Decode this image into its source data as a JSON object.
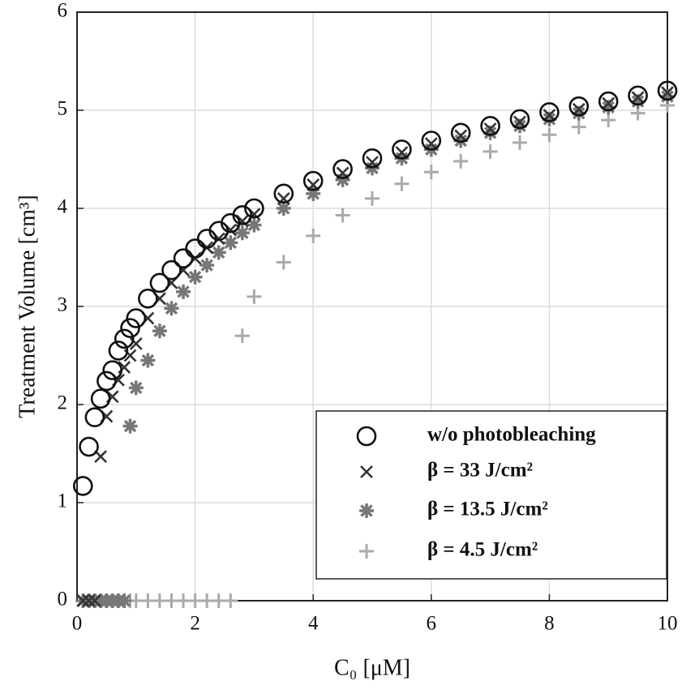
{
  "chart_data": {
    "type": "scatter",
    "x_label": "C₀ [μM]",
    "y_label": "Treatment Volume [cm³]",
    "x": [
      0.1,
      0.2,
      0.3,
      0.4,
      0.5,
      0.6,
      0.7,
      0.8,
      0.9,
      1.0,
      1.2,
      1.4,
      1.6,
      1.8,
      2.0,
      2.2,
      2.4,
      2.6,
      2.8,
      3.0,
      3.5,
      4,
      4.5,
      5,
      5.5,
      6,
      6.5,
      7,
      7.5,
      8,
      8.5,
      9,
      9.5,
      10
    ],
    "series": [
      {
        "name": "w/o photobleaching",
        "marker": "circle",
        "color": "#111111",
        "values": [
          1.17,
          1.57,
          1.87,
          2.06,
          2.24,
          2.35,
          2.55,
          2.67,
          2.78,
          2.88,
          3.08,
          3.24,
          3.37,
          3.49,
          3.59,
          3.69,
          3.77,
          3.85,
          3.93,
          4.0,
          4.15,
          4.28,
          4.4,
          4.51,
          4.6,
          4.69,
          4.77,
          4.84,
          4.91,
          4.98,
          5.04,
          5.09,
          5.15,
          5.2
        ]
      },
      {
        "name": "β = 33 J/cm²",
        "marker": "x",
        "color": "#333333",
        "values": [
          0,
          0,
          0,
          1.47,
          1.88,
          2.08,
          2.25,
          2.38,
          2.5,
          2.62,
          2.88,
          3.08,
          3.24,
          3.37,
          3.49,
          3.6,
          3.69,
          3.78,
          3.87,
          3.94,
          4.1,
          4.24,
          4.36,
          4.47,
          4.57,
          4.66,
          4.74,
          4.81,
          4.88,
          4.95,
          5.01,
          5.07,
          5.13,
          5.18
        ]
      },
      {
        "name": "β = 13.5 J/cm²",
        "marker": "asterisk",
        "color": "#777777",
        "values": [
          0,
          0,
          0,
          0,
          0,
          0,
          0,
          0,
          1.78,
          2.17,
          2.45,
          2.75,
          2.98,
          3.15,
          3.3,
          3.42,
          3.55,
          3.65,
          3.75,
          3.83,
          4.0,
          4.15,
          4.29,
          4.41,
          4.51,
          4.6,
          4.69,
          4.77,
          4.84,
          4.91,
          4.97,
          5.03,
          5.09,
          5.14
        ]
      },
      {
        "name": "β = 4.5 J/cm²",
        "marker": "plus",
        "color": "#aaaaaa",
        "values": [
          0,
          0,
          0,
          0,
          0,
          0,
          0,
          0,
          0,
          0,
          0,
          0,
          0,
          0,
          0,
          0,
          0,
          0,
          2.7,
          3.1,
          3.45,
          3.72,
          3.93,
          4.1,
          4.25,
          4.37,
          4.48,
          4.58,
          4.67,
          4.75,
          4.83,
          4.9,
          4.97,
          5.05
        ]
      }
    ],
    "xlim": [
      0,
      10
    ],
    "xticks": [
      0,
      2,
      4,
      6,
      8,
      10
    ],
    "ylim": [
      0,
      6
    ],
    "yticks": [
      0,
      1,
      2,
      3,
      4,
      5,
      6
    ],
    "grid": true,
    "legend": "lower-right"
  }
}
